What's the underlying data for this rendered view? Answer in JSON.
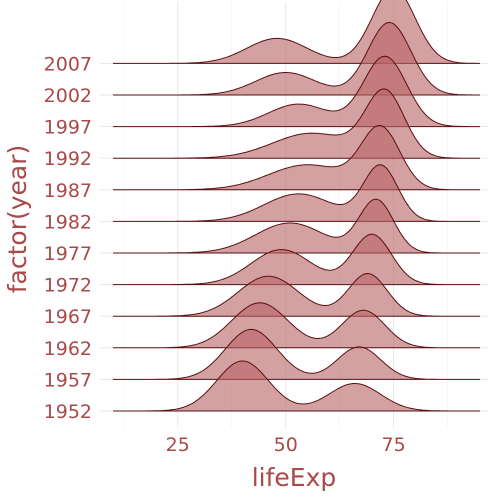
{
  "chart_data": {
    "type": "ridgeline",
    "xlabel": "lifeExp",
    "ylabel": "factor(year)",
    "xlim": [
      10,
      95
    ],
    "xticks": [
      25,
      50,
      75
    ],
    "grid": true,
    "fill_color": "#b86264",
    "line_color": "#5a0f12",
    "text_color": "#a84a4a",
    "series": [
      {
        "name": "1952",
        "peaks": [
          {
            "mu": 40,
            "sd": 6,
            "h": 1.0
          },
          {
            "mu": 66,
            "sd": 6,
            "h": 0.55
          }
        ],
        "range": [
          28.8,
          72.7
        ]
      },
      {
        "name": "1957",
        "peaks": [
          {
            "mu": 42,
            "sd": 6,
            "h": 1.0
          },
          {
            "mu": 67,
            "sd": 5,
            "h": 0.65
          }
        ],
        "range": [
          30.3,
          73.5
        ]
      },
      {
        "name": "1962",
        "peaks": [
          {
            "mu": 44,
            "sd": 6.5,
            "h": 0.9
          },
          {
            "mu": 68,
            "sd": 5,
            "h": 0.75
          }
        ],
        "range": [
          32,
          73.7
        ]
      },
      {
        "name": "1967",
        "peaks": [
          {
            "mu": 46,
            "sd": 7,
            "h": 0.8
          },
          {
            "mu": 69,
            "sd": 4.5,
            "h": 0.85
          }
        ],
        "range": [
          34,
          74.2
        ]
      },
      {
        "name": "1972",
        "peaks": [
          {
            "mu": 49,
            "sd": 7,
            "h": 0.7
          },
          {
            "mu": 70,
            "sd": 4.5,
            "h": 1.0
          }
        ],
        "range": [
          35.4,
          74.7
        ]
      },
      {
        "name": "1977",
        "peaks": [
          {
            "mu": 51,
            "sd": 8,
            "h": 0.6
          },
          {
            "mu": 71,
            "sd": 4,
            "h": 1.05
          }
        ],
        "range": [
          31.2,
          76.1
        ]
      },
      {
        "name": "1982",
        "peaks": [
          {
            "mu": 53,
            "sd": 8,
            "h": 0.55
          },
          {
            "mu": 72,
            "sd": 4,
            "h": 1.1
          }
        ],
        "range": [
          38.4,
          77.1
        ]
      },
      {
        "name": "1987",
        "peaks": [
          {
            "mu": 55,
            "sd": 9,
            "h": 0.5
          },
          {
            "mu": 72,
            "sd": 4.5,
            "h": 1.2
          }
        ],
        "range": [
          39.9,
          78.7
        ]
      },
      {
        "name": "1992",
        "peaks": [
          {
            "mu": 56,
            "sd": 9,
            "h": 0.5
          },
          {
            "mu": 73,
            "sd": 4.5,
            "h": 1.3
          }
        ],
        "range": [
          23.6,
          79.4
        ]
      },
      {
        "name": "1997",
        "peaks": [
          {
            "mu": 53,
            "sd": 7,
            "h": 0.45
          },
          {
            "mu": 73,
            "sd": 5,
            "h": 1.4
          }
        ],
        "range": [
          36.1,
          80.7
        ]
      },
      {
        "name": "2002",
        "peaks": [
          {
            "mu": 50,
            "sd": 7,
            "h": 0.45
          },
          {
            "mu": 74,
            "sd": 5,
            "h": 1.45
          }
        ],
        "range": [
          39.2,
          82
        ]
      },
      {
        "name": "2007",
        "peaks": [
          {
            "mu": 48,
            "sd": 7,
            "h": 0.5
          },
          {
            "mu": 75,
            "sd": 5,
            "h": 1.5
          }
        ],
        "range": [
          39.6,
          82.6
        ]
      }
    ]
  }
}
